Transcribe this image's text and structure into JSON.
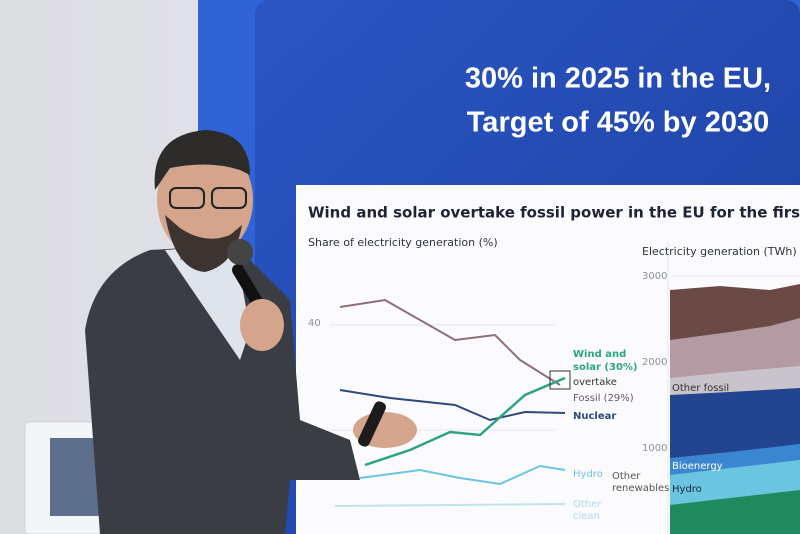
{
  "slide": {
    "headline": [
      "30% in 2025 in the EU,",
      "Target of 45% by 2030"
    ],
    "chart": {
      "title": "Wind and solar overtake fossil power in the EU for the first time",
      "left_panel": {
        "axis_label": "Share of electricity generation (%)",
        "tick": 40,
        "labels": [
          "Wind and",
          "solar (30%)",
          "overtake",
          "Fossil (29%)",
          "Nuclear",
          "Hydro",
          "Other",
          "clean"
        ]
      },
      "right_panel": {
        "axis_label": "Electricity generation (TWh)",
        "ticks": [
          3000,
          2000,
          1000
        ],
        "labels": [
          "Other fossil",
          "Bioenergy",
          "Hydro",
          "Other",
          "renewables"
        ]
      }
    }
  }
}
